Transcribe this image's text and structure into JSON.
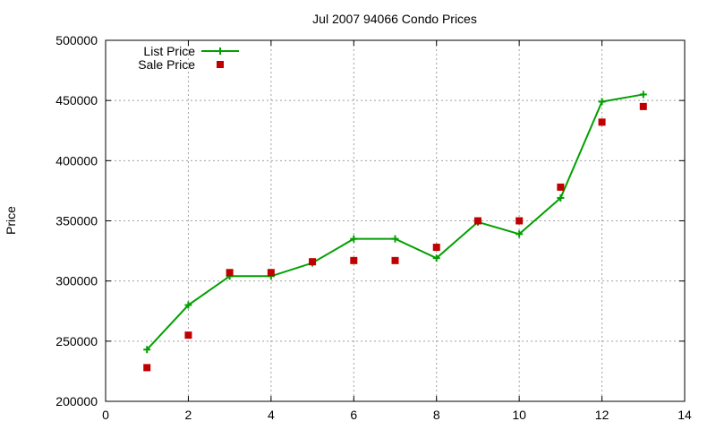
{
  "chart_data": {
    "type": "line",
    "title": "Jul 2007 94066 Condo Prices",
    "xlabel": "",
    "ylabel": "Price",
    "xlim": [
      0,
      14
    ],
    "ylim": [
      200000,
      500000
    ],
    "xticks": [
      "0",
      "2",
      "4",
      "6",
      "8",
      "10",
      "12",
      "14"
    ],
    "yticks": [
      "200000",
      "250000",
      "300000",
      "350000",
      "400000",
      "450000",
      "500000"
    ],
    "grid": true,
    "legend_position": "top-left",
    "series": [
      {
        "name": "List Price",
        "style": "line-plus",
        "color": "#00a000",
        "x": [
          1,
          2,
          3,
          4,
          5,
          6,
          7,
          8,
          9,
          10,
          11,
          12,
          13
        ],
        "values": [
          243000,
          280000,
          304000,
          304000,
          315000,
          335000,
          335000,
          319000,
          349000,
          339000,
          369000,
          449000,
          455000
        ]
      },
      {
        "name": "Sale Price",
        "style": "square-points",
        "color": "#c00000",
        "x": [
          1,
          2,
          3,
          4,
          5,
          6,
          7,
          8,
          9,
          10,
          11,
          12,
          13
        ],
        "values": [
          228000,
          255000,
          307000,
          307000,
          316000,
          317000,
          317000,
          328000,
          350000,
          350000,
          378000,
          432000,
          445000
        ]
      }
    ]
  }
}
